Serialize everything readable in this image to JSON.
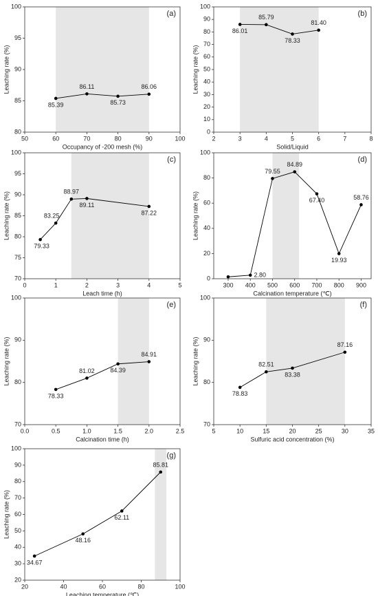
{
  "chart_data": [
    {
      "type": "line",
      "panel_label": "(a)",
      "x_label": "Occupancy of -200 mesh (%)",
      "y_label": "Leaching rate (%)",
      "x": [
        60,
        70,
        80,
        90
      ],
      "values": [
        85.39,
        86.11,
        85.73,
        86.06
      ],
      "xlim": [
        50,
        100
      ],
      "xticks": [
        50,
        60,
        70,
        80,
        90,
        100
      ],
      "ylim": [
        80,
        100
      ],
      "yticks": [
        80,
        85,
        90,
        95,
        100
      ],
      "highlight": [
        60,
        90
      ],
      "color": "#000000",
      "highlight_color": "#e6e6e6"
    },
    {
      "type": "line",
      "panel_label": "(b)",
      "x_label": "Solid/Liquid",
      "y_label": "Leaching rate (%)",
      "x": [
        3,
        4,
        5,
        6
      ],
      "values": [
        86.01,
        85.79,
        78.33,
        81.4
      ],
      "value_labels": [
        "86.01",
        "85.79",
        "78.33",
        "81.40"
      ],
      "xlim": [
        2,
        8
      ],
      "xticks": [
        2,
        3,
        4,
        5,
        6,
        7,
        8
      ],
      "ylim": [
        0,
        100
      ],
      "yticks": [
        0,
        10,
        20,
        30,
        40,
        50,
        60,
        70,
        80,
        90,
        100
      ],
      "highlight": [
        3,
        6
      ],
      "color": "#000000",
      "highlight_color": "#e6e6e6"
    },
    {
      "type": "line",
      "panel_label": "(c)",
      "x_label": "Leach time (h)",
      "y_label": "Leaching rate (%)",
      "x": [
        0.5,
        1,
        1.5,
        2,
        4
      ],
      "values": [
        79.33,
        83.25,
        88.97,
        89.11,
        87.22
      ],
      "xlim": [
        0,
        5
      ],
      "xticks": [
        0,
        1,
        2,
        3,
        4,
        5
      ],
      "ylim": [
        70,
        100
      ],
      "yticks": [
        70,
        75,
        80,
        85,
        90,
        95,
        100
      ],
      "highlight": [
        1.5,
        4
      ],
      "color": "#000000",
      "highlight_color": "#e6e6e6"
    },
    {
      "type": "line",
      "panel_label": "(d)",
      "x_label": "Calcination temperature (℃)",
      "y_label": "Leaching rate (%)",
      "x": [
        300,
        400,
        500,
        600,
        700,
        800,
        900
      ],
      "values": [
        1.5,
        2.8,
        79.55,
        84.89,
        67.4,
        19.93,
        58.76
      ],
      "value_labels": [
        null,
        "2.80",
        "79.55",
        "84.89",
        "67.40",
        "19.93",
        "58.76"
      ],
      "xlim": [
        235,
        945
      ],
      "xticks": [
        300,
        400,
        500,
        600,
        700,
        800,
        900
      ],
      "ylim": [
        0,
        100
      ],
      "yticks": [
        0,
        20,
        40,
        60,
        80,
        100
      ],
      "highlight": [
        500,
        620
      ],
      "color": "#000000",
      "highlight_color": "#e6e6e6"
    },
    {
      "type": "line",
      "panel_label": "(e)",
      "x_label": "Calcination time (h)",
      "y_label": "Leaching rate (%)",
      "x": [
        0.5,
        1,
        1.5,
        2
      ],
      "values": [
        78.33,
        81.02,
        84.39,
        84.91
      ],
      "xlim": [
        0,
        2.5
      ],
      "xticks": [
        {
          "value": 0,
          "label": "0.0"
        },
        0.5,
        {
          "value": 1,
          "label": "1.0"
        },
        1.5,
        {
          "value": 2,
          "label": "2.0"
        },
        2.5
      ],
      "ylim": [
        70,
        100
      ],
      "yticks": [
        70,
        80,
        90,
        100
      ],
      "highlight": [
        1.5,
        2
      ],
      "color": "#000000",
      "highlight_color": "#e6e6e6"
    },
    {
      "type": "line",
      "panel_label": "(f)",
      "x_label": "Sulfuric acid concentration (%)",
      "y_label": "Leaching rate (%)",
      "x": [
        10,
        15,
        20,
        30
      ],
      "values": [
        78.83,
        82.51,
        83.38,
        87.16
      ],
      "xlim": [
        5,
        35
      ],
      "xticks": [
        5,
        10,
        15,
        20,
        25,
        30,
        35
      ],
      "ylim": [
        70,
        100
      ],
      "yticks": [
        70,
        80,
        90,
        100
      ],
      "highlight": [
        15,
        30
      ],
      "color": "#000000",
      "highlight_color": "#e6e6e6"
    },
    {
      "type": "line",
      "panel_label": "(g)",
      "x_label": "Leaching temperature (℃)",
      "y_label": "Leaching rate (%)",
      "x": [
        25,
        50,
        70,
        90
      ],
      "values": [
        34.67,
        48.16,
        62.11,
        85.81
      ],
      "xlim": [
        20,
        100
      ],
      "xticks": [
        20,
        40,
        60,
        80,
        100
      ],
      "ylim": [
        20,
        100
      ],
      "yticks": [
        20,
        30,
        40,
        50,
        60,
        70,
        80,
        90,
        100
      ],
      "highlight": [
        87,
        93
      ],
      "color": "#000000",
      "highlight_color": "#e6e6e6"
    }
  ]
}
